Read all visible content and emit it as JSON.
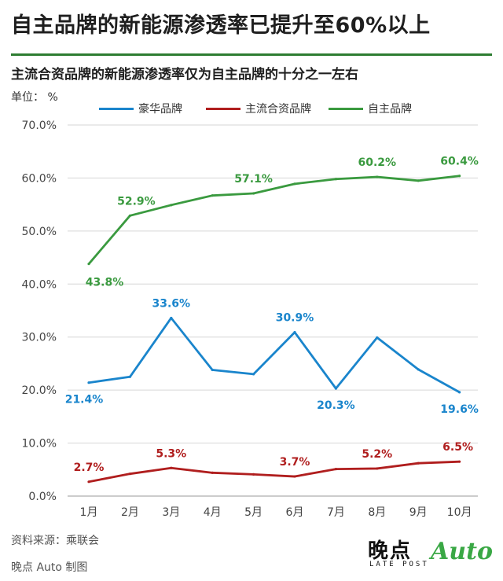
{
  "header": {
    "title": "自主品牌的新能源渗透率已提升至60%以上",
    "subtitle": "主流合资品牌的新能源渗透率仅为自主品牌的十分之一左右",
    "unit_label": "单位：  %"
  },
  "footer": {
    "source": "资料来源：乘联会",
    "credit": "晚点 Auto 制图"
  },
  "logo": {
    "cn": "晚点",
    "en": "LATE POST",
    "auto": "Auto"
  },
  "chart_data": {
    "type": "line",
    "title": "自主品牌的新能源渗透率已提升至60%以上",
    "subtitle": "主流合资品牌的新能源渗透率仅为自主品牌的十分之一左右",
    "ylabel": "单位：  %",
    "ylim": [
      0,
      70
    ],
    "yticks": [
      0,
      10,
      20,
      30,
      40,
      50,
      60,
      70
    ],
    "ytick_labels": [
      "0.0%",
      "10.0%",
      "20.0%",
      "30.0%",
      "40.0%",
      "50.0%",
      "60.0%",
      "70.0%"
    ],
    "categories": [
      "1月",
      "2月",
      "3月",
      "4月",
      "5月",
      "6月",
      "7月",
      "8月",
      "9月",
      "10月"
    ],
    "grid": true,
    "legend_position": "top",
    "series": [
      {
        "name": "豪华品牌",
        "color": "#1a85cc",
        "values": [
          21.4,
          22.5,
          33.6,
          23.8,
          23.0,
          30.9,
          20.3,
          29.9,
          23.9,
          19.6
        ],
        "labels": [
          "21.4%",
          "",
          "33.6%",
          "",
          "",
          "30.9%",
          "20.3%",
          "",
          "",
          "19.6%"
        ]
      },
      {
        "name": "主流合资品牌",
        "color": "#b01e1e",
        "values": [
          2.7,
          4.2,
          5.3,
          4.4,
          4.1,
          3.7,
          5.1,
          5.2,
          6.2,
          6.5
        ],
        "labels": [
          "2.7%",
          "",
          "5.3%",
          "",
          "",
          "3.7%",
          "",
          "5.2%",
          "",
          "6.5%"
        ]
      },
      {
        "name": "自主品牌",
        "color": "#3a9a3f",
        "values": [
          43.8,
          52.9,
          54.9,
          56.7,
          57.1,
          58.9,
          59.8,
          60.2,
          59.5,
          60.4
        ],
        "labels": [
          "43.8%",
          "52.9%",
          "",
          "",
          "57.1%",
          "",
          "",
          "60.2%",
          "",
          "60.4%"
        ]
      }
    ]
  }
}
